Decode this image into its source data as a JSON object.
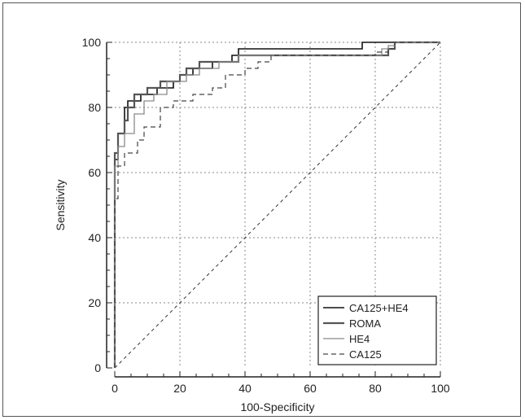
{
  "chart_data": {
    "type": "line",
    "title": "",
    "xlabel": "100-Specificity",
    "ylabel": "Sensitivity",
    "xlim": [
      0,
      100
    ],
    "ylim": [
      0,
      100
    ],
    "xticks": [
      "0",
      "20",
      "40",
      "60",
      "80",
      "100"
    ],
    "yticks": [
      "0",
      "20",
      "40",
      "60",
      "80",
      "100"
    ],
    "grid": true,
    "legend_position": "bottom-right",
    "reference_line": {
      "x": [
        0,
        100
      ],
      "y": [
        0,
        100
      ],
      "style": "dashed"
    },
    "series": [
      {
        "name": "CA125+HE4",
        "style": "solid",
        "color": "#111111",
        "points": [
          [
            0,
            0
          ],
          [
            0,
            64
          ],
          [
            1,
            64
          ],
          [
            1,
            72
          ],
          [
            3,
            72
          ],
          [
            3,
            80
          ],
          [
            4,
            80
          ],
          [
            4,
            82
          ],
          [
            8,
            82
          ],
          [
            8,
            84
          ],
          [
            13,
            84
          ],
          [
            13,
            86
          ],
          [
            18,
            86
          ],
          [
            18,
            88
          ],
          [
            20,
            88
          ],
          [
            20,
            90
          ],
          [
            24,
            90
          ],
          [
            24,
            92
          ],
          [
            30,
            92
          ],
          [
            30,
            94
          ],
          [
            36,
            94
          ],
          [
            36,
            96
          ],
          [
            38,
            96
          ],
          [
            38,
            98
          ],
          [
            76,
            98
          ],
          [
            76,
            100
          ],
          [
            100,
            100
          ]
        ]
      },
      {
        "name": "ROMA",
        "style": "solid",
        "color": "#555555",
        "points": [
          [
            0,
            0
          ],
          [
            0,
            66
          ],
          [
            1,
            66
          ],
          [
            1,
            72
          ],
          [
            3,
            72
          ],
          [
            3,
            76
          ],
          [
            4,
            76
          ],
          [
            4,
            80
          ],
          [
            6,
            80
          ],
          [
            6,
            84
          ],
          [
            10,
            84
          ],
          [
            10,
            86
          ],
          [
            14,
            86
          ],
          [
            14,
            88
          ],
          [
            20,
            88
          ],
          [
            20,
            90
          ],
          [
            22,
            90
          ],
          [
            22,
            92
          ],
          [
            26,
            92
          ],
          [
            26,
            94
          ],
          [
            38,
            94
          ],
          [
            38,
            96
          ],
          [
            84,
            96
          ],
          [
            84,
            98
          ],
          [
            86,
            98
          ],
          [
            86,
            100
          ],
          [
            100,
            100
          ]
        ]
      },
      {
        "name": "HE4",
        "style": "solid",
        "color": "#8a8a8a",
        "points": [
          [
            0,
            0
          ],
          [
            0,
            62
          ],
          [
            1,
            62
          ],
          [
            1,
            68
          ],
          [
            3,
            68
          ],
          [
            3,
            72
          ],
          [
            6,
            72
          ],
          [
            6,
            78
          ],
          [
            9,
            78
          ],
          [
            9,
            82
          ],
          [
            12,
            82
          ],
          [
            12,
            84
          ],
          [
            16,
            84
          ],
          [
            16,
            88
          ],
          [
            22,
            88
          ],
          [
            22,
            90
          ],
          [
            26,
            90
          ],
          [
            26,
            92
          ],
          [
            32,
            92
          ],
          [
            32,
            94
          ],
          [
            38,
            94
          ],
          [
            38,
            96
          ],
          [
            82,
            96
          ],
          [
            82,
            98
          ],
          [
            84,
            98
          ],
          [
            84,
            99
          ],
          [
            86,
            99
          ],
          [
            86,
            100
          ],
          [
            100,
            100
          ]
        ]
      },
      {
        "name": "CA125",
        "style": "dashed",
        "color": "#444444",
        "points": [
          [
            0,
            0
          ],
          [
            0,
            52
          ],
          [
            1,
            52
          ],
          [
            1,
            62
          ],
          [
            3,
            62
          ],
          [
            3,
            66
          ],
          [
            7,
            66
          ],
          [
            7,
            70
          ],
          [
            9,
            70
          ],
          [
            9,
            74
          ],
          [
            14,
            74
          ],
          [
            14,
            80
          ],
          [
            18,
            80
          ],
          [
            18,
            82
          ],
          [
            24,
            82
          ],
          [
            24,
            84
          ],
          [
            30,
            84
          ],
          [
            30,
            86
          ],
          [
            34,
            86
          ],
          [
            34,
            90
          ],
          [
            40,
            90
          ],
          [
            40,
            92
          ],
          [
            44,
            92
          ],
          [
            44,
            94
          ],
          [
            48,
            94
          ],
          [
            48,
            96
          ],
          [
            80,
            96
          ],
          [
            80,
            97
          ],
          [
            84,
            97
          ],
          [
            84,
            98
          ],
          [
            86,
            98
          ],
          [
            86,
            100
          ],
          [
            100,
            100
          ]
        ]
      }
    ]
  }
}
